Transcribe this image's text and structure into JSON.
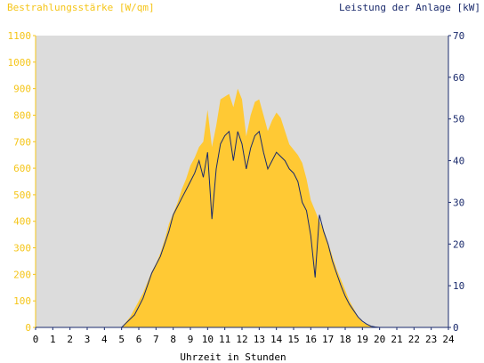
{
  "chart_data": {
    "type": "area",
    "title_left": "Bestrahlungsstärke [W/qm]",
    "title_right": "Leistung der Anlage [kW]",
    "xlabel": "Uhrzeit in Stunden",
    "xlim": [
      0,
      24
    ],
    "x_ticks": [
      "0",
      "1",
      "2",
      "3",
      "4",
      "5",
      "6",
      "7",
      "8",
      "9",
      "10",
      "11",
      "12",
      "13",
      "14",
      "15",
      "16",
      "17",
      "18",
      "19",
      "20",
      "21",
      "22",
      "23",
      "24"
    ],
    "y_left": {
      "lim": [
        0,
        1100
      ],
      "ticks": [
        "0",
        "100",
        "200",
        "300",
        "400",
        "500",
        "600",
        "700",
        "800",
        "900",
        "1000",
        "1100"
      ]
    },
    "y_right": {
      "lim": [
        0,
        70
      ],
      "ticks": [
        "0",
        "10",
        "20",
        "30",
        "40",
        "50",
        "60",
        "70"
      ]
    },
    "grid": false,
    "colors": {
      "irradiance": "#ffc934",
      "power": "#1a2a6c",
      "plot_bg": "#dcdcdc",
      "left_axis_text": "#f5c518",
      "right_axis_text": "#1a2a6c"
    },
    "series": [
      {
        "name": "Bestrahlungsstärke",
        "axis": "left",
        "style": "area",
        "x": [
          0,
          5.0,
          5.25,
          5.5,
          5.75,
          6.0,
          6.25,
          6.5,
          6.75,
          7.0,
          7.25,
          7.5,
          7.75,
          8.0,
          8.25,
          8.5,
          8.75,
          9.0,
          9.25,
          9.5,
          9.75,
          10.0,
          10.25,
          10.5,
          10.75,
          11.0,
          11.25,
          11.5,
          11.75,
          12.0,
          12.25,
          12.5,
          12.75,
          13.0,
          13.25,
          13.5,
          13.75,
          14.0,
          14.25,
          14.5,
          14.75,
          15.0,
          15.25,
          15.5,
          15.75,
          16.0,
          16.25,
          16.5,
          16.75,
          17.0,
          17.25,
          17.5,
          17.75,
          18.0,
          18.25,
          18.5,
          18.75,
          19.0,
          19.25,
          19.5,
          19.75,
          20.0,
          24
        ],
        "y": [
          0,
          0,
          20,
          40,
          70,
          100,
          130,
          170,
          210,
          240,
          280,
          330,
          390,
          430,
          470,
          520,
          560,
          610,
          640,
          680,
          700,
          820,
          680,
          760,
          860,
          870,
          880,
          830,
          900,
          860,
          720,
          800,
          850,
          860,
          800,
          740,
          780,
          810,
          790,
          740,
          690,
          670,
          650,
          620,
          560,
          480,
          440,
          400,
          370,
          320,
          270,
          220,
          180,
          140,
          100,
          70,
          40,
          20,
          10,
          5,
          2,
          0,
          0
        ]
      },
      {
        "name": "Leistung",
        "axis": "right",
        "style": "line",
        "x": [
          0,
          5.0,
          5.25,
          5.5,
          5.75,
          6.0,
          6.25,
          6.5,
          6.75,
          7.0,
          7.25,
          7.5,
          7.75,
          8.0,
          8.25,
          8.5,
          8.75,
          9.0,
          9.25,
          9.5,
          9.75,
          10.0,
          10.25,
          10.5,
          10.75,
          11.0,
          11.25,
          11.5,
          11.75,
          12.0,
          12.25,
          12.5,
          12.75,
          13.0,
          13.25,
          13.5,
          13.75,
          14.0,
          14.25,
          14.5,
          14.75,
          15.0,
          15.25,
          15.5,
          15.75,
          16.0,
          16.25,
          16.5,
          16.75,
          17.0,
          17.25,
          17.5,
          17.75,
          18.0,
          18.25,
          18.5,
          18.75,
          19.0,
          19.25,
          19.5,
          19.75,
          20.0,
          24
        ],
        "y": [
          0,
          0,
          1,
          2,
          3,
          5,
          7,
          10,
          13,
          15,
          17,
          20,
          23,
          27,
          29,
          31,
          33,
          35,
          37,
          40,
          36,
          42,
          26,
          38,
          44,
          46,
          47,
          40,
          47,
          44,
          38,
          43,
          46,
          47,
          42,
          38,
          40,
          42,
          41,
          40,
          38,
          37,
          35,
          30,
          28,
          22,
          12,
          27,
          23,
          20,
          16,
          13,
          10,
          7.5,
          5.5,
          4,
          2.5,
          1.5,
          0.8,
          0.3,
          0.1,
          0,
          0
        ]
      }
    ]
  }
}
